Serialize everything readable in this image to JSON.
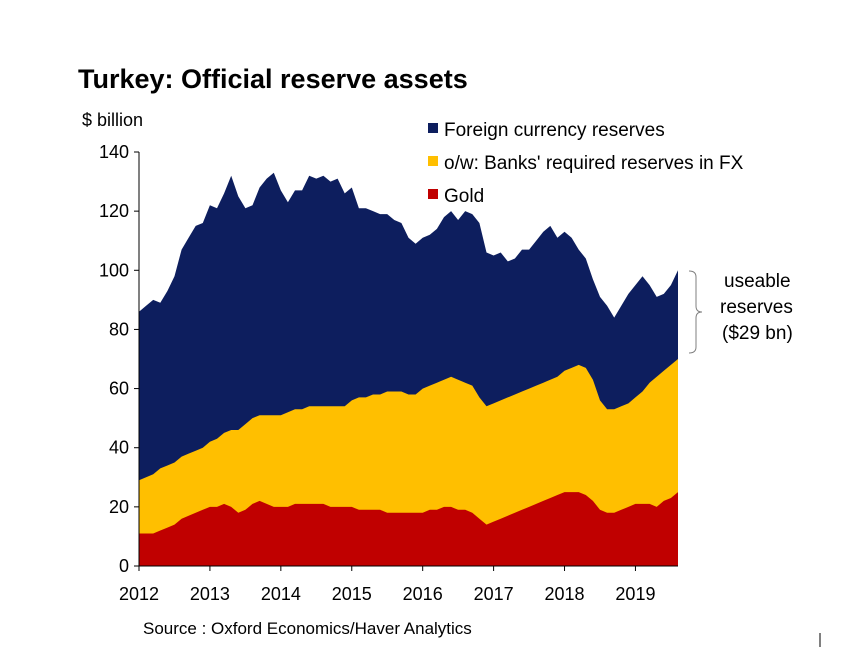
{
  "chart_data": {
    "type": "area",
    "title": "Turkey: Official reserve assets",
    "ylabel": "$ billion",
    "source": "Source : Oxford Economics/Haver Analytics",
    "ylim": [
      0,
      140
    ],
    "xlim": [
      2012,
      2019.6
    ],
    "yticks": [
      0,
      20,
      40,
      60,
      80,
      100,
      120,
      140
    ],
    "xticks": [
      2012,
      2013,
      2014,
      2015,
      2016,
      2017,
      2018,
      2019
    ],
    "x": [
      2012.0,
      2012.1,
      2012.2,
      2012.3,
      2012.4,
      2012.5,
      2012.6,
      2012.7,
      2012.8,
      2012.9,
      2013.0,
      2013.1,
      2013.2,
      2013.3,
      2013.4,
      2013.5,
      2013.6,
      2013.7,
      2013.8,
      2013.9,
      2014.0,
      2014.1,
      2014.2,
      2014.3,
      2014.4,
      2014.5,
      2014.6,
      2014.7,
      2014.8,
      2014.9,
      2015.0,
      2015.1,
      2015.2,
      2015.3,
      2015.4,
      2015.5,
      2015.6,
      2015.7,
      2015.8,
      2015.9,
      2016.0,
      2016.1,
      2016.2,
      2016.3,
      2016.4,
      2016.5,
      2016.6,
      2016.7,
      2016.8,
      2016.9,
      2017.0,
      2017.1,
      2017.2,
      2017.3,
      2017.4,
      2017.5,
      2017.6,
      2017.7,
      2017.8,
      2017.9,
      2018.0,
      2018.1,
      2018.2,
      2018.3,
      2018.4,
      2018.5,
      2018.6,
      2018.7,
      2018.8,
      2018.9,
      2019.0,
      2019.1,
      2019.2,
      2019.3,
      2019.4,
      2019.5,
      2019.6
    ],
    "series": [
      {
        "name": "Foreign currency reserves",
        "color": "#0d1e5e",
        "values": [
          86,
          88,
          90,
          89,
          93,
          98,
          107,
          111,
          115,
          116,
          122,
          121,
          126,
          132,
          125,
          121,
          122,
          128,
          131,
          133,
          127,
          123,
          127,
          127,
          132,
          131,
          132,
          130,
          131,
          126,
          128,
          121,
          121,
          120,
          119,
          119,
          117,
          116,
          111,
          109,
          111,
          112,
          114,
          118,
          120,
          117,
          120,
          119,
          116,
          106,
          105,
          106,
          103,
          104,
          107,
          107,
          110,
          113,
          115,
          111,
          113,
          111,
          107,
          104,
          97,
          91,
          88,
          84,
          88,
          92,
          95,
          98,
          95,
          91,
          92,
          95,
          100
        ]
      },
      {
        "name": "o/w: Banks' required reserves in FX",
        "color": "#ffbf00",
        "values": [
          29,
          30,
          31,
          33,
          34,
          35,
          37,
          38,
          39,
          40,
          42,
          43,
          45,
          46,
          46,
          48,
          50,
          51,
          51,
          51,
          51,
          52,
          53,
          53,
          54,
          54,
          54,
          54,
          54,
          54,
          56,
          57,
          57,
          58,
          58,
          59,
          59,
          59,
          58,
          58,
          60,
          61,
          62,
          63,
          64,
          63,
          62,
          61,
          57,
          54,
          55,
          56,
          57,
          58,
          59,
          60,
          61,
          62,
          63,
          64,
          66,
          67,
          68,
          67,
          63,
          56,
          53,
          53,
          54,
          55,
          57,
          59,
          62,
          64,
          66,
          68,
          70
        ]
      },
      {
        "name": "Gold",
        "color": "#c00000",
        "values": [
          11,
          11,
          11,
          12,
          13,
          14,
          16,
          17,
          18,
          19,
          20,
          20,
          21,
          20,
          18,
          19,
          21,
          22,
          21,
          20,
          20,
          20,
          21,
          21,
          21,
          21,
          21,
          20,
          20,
          20,
          20,
          19,
          19,
          19,
          19,
          18,
          18,
          18,
          18,
          18,
          18,
          19,
          19,
          20,
          20,
          19,
          19,
          18,
          16,
          14,
          15,
          16,
          17,
          18,
          19,
          20,
          21,
          22,
          23,
          24,
          25,
          25,
          25,
          24,
          22,
          19,
          18,
          18,
          19,
          20,
          21,
          21,
          21,
          20,
          22,
          23,
          25
        ]
      }
    ],
    "annotation": {
      "lines": [
        "useable",
        "reserves",
        "($29 bn)"
      ]
    },
    "grid": false,
    "legend_position": "top-right"
  }
}
